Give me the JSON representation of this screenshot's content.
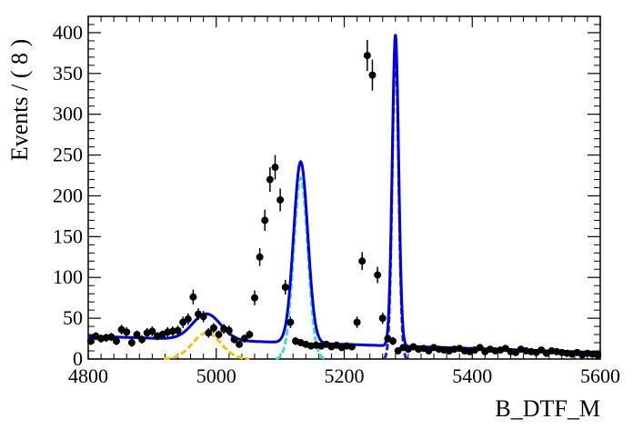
{
  "chart_data": {
    "type": "scatter",
    "xlabel": "B_DTF_M",
    "ylabel": "Events / ( 8 )",
    "xlim": [
      4800,
      5600
    ],
    "ylim": [
      0,
      420
    ],
    "x_ticks": [
      4800,
      5000,
      5200,
      5400,
      5600
    ],
    "y_ticks": [
      0,
      50,
      100,
      150,
      200,
      250,
      300,
      350,
      400
    ],
    "data_points": {
      "x": [
        4804,
        4812,
        4820,
        4828,
        4836,
        4844,
        4852,
        4860,
        4868,
        4876,
        4884,
        4892,
        4900,
        4908,
        4916,
        4924,
        4932,
        4940,
        4948,
        4956,
        4964,
        4972,
        4980,
        4988,
        4996,
        5004,
        5012,
        5020,
        5028,
        5036,
        5044,
        5052,
        5060,
        5068,
        5076,
        5084,
        5092,
        5100,
        5108,
        5116,
        5124,
        5132,
        5140,
        5148,
        5156,
        5164,
        5172,
        5180,
        5188,
        5196,
        5204,
        5212,
        5220,
        5228,
        5236,
        5244,
        5252,
        5260,
        5268,
        5276,
        5284,
        5292,
        5300,
        5308,
        5316,
        5324,
        5332,
        5340,
        5348,
        5356,
        5364,
        5372,
        5380,
        5388,
        5396,
        5404,
        5412,
        5420,
        5428,
        5436,
        5444,
        5452,
        5460,
        5468,
        5476,
        5484,
        5492,
        5500,
        5508,
        5516,
        5524,
        5532,
        5540,
        5548,
        5556,
        5564,
        5572,
        5580,
        5588,
        5596
      ],
      "y": [
        22,
        28,
        25,
        26,
        27,
        22,
        36,
        33,
        20,
        30,
        24,
        32,
        34,
        28,
        30,
        33,
        34,
        35,
        45,
        49,
        76,
        55,
        52,
        32,
        38,
        30,
        37,
        35,
        24,
        18,
        25,
        30,
        75,
        125,
        170,
        220,
        235,
        195,
        88,
        45,
        22,
        20,
        18,
        16,
        17,
        16,
        18,
        15,
        17,
        14,
        16,
        15,
        45,
        120,
        372,
        348,
        103,
        50,
        25,
        22,
        10,
        14,
        12,
        15,
        12,
        13,
        10,
        14,
        12,
        11,
        10,
        12,
        13,
        10,
        9,
        11,
        14,
        9,
        12,
        10,
        11,
        13,
        9,
        8,
        12,
        10,
        9,
        8,
        11,
        7,
        10,
        9,
        8,
        7,
        6,
        8,
        5,
        7,
        6,
        5
      ],
      "errors": [
        5,
        5,
        5,
        5,
        5,
        5,
        6,
        6,
        5,
        5,
        5,
        6,
        6,
        5,
        5,
        6,
        6,
        6,
        7,
        7,
        9,
        7,
        7,
        6,
        6,
        5,
        6,
        6,
        5,
        4,
        5,
        5,
        9,
        11,
        13,
        15,
        15,
        14,
        9,
        7,
        5,
        4,
        4,
        4,
        4,
        4,
        4,
        4,
        4,
        4,
        4,
        4,
        7,
        11,
        19,
        19,
        10,
        7,
        5,
        5,
        3,
        4,
        3,
        4,
        3,
        4,
        3,
        4,
        3,
        3,
        3,
        3,
        4,
        3,
        3,
        3,
        4,
        3,
        3,
        3,
        3,
        4,
        3,
        3,
        3,
        3,
        3,
        3,
        3,
        3,
        3,
        3,
        3,
        3,
        2,
        3,
        2,
        3,
        2,
        2
      ]
    },
    "components": [
      {
        "name": "",
        "color": "#f5c010",
        "type": "gaussian",
        "mean": 4985,
        "sigma": 22,
        "amplitude": 32
      },
      {
        "name": "",
        "color": "#40e0c8",
        "type": "gaussian",
        "mean": 5132,
        "sigma": 11,
        "amplitude": 222
      },
      {
        "name": "",
        "color": "#1a1ae6",
        "type": "gaussian",
        "mean": 5280,
        "sigma": 5,
        "amplitude": 382
      }
    ],
    "total_fit": {
      "color": "#0000e6",
      "background": {
        "y_at_4800": 28,
        "y_at_5600": 8
      }
    },
    "marker_color": "#000000",
    "grid": false
  }
}
